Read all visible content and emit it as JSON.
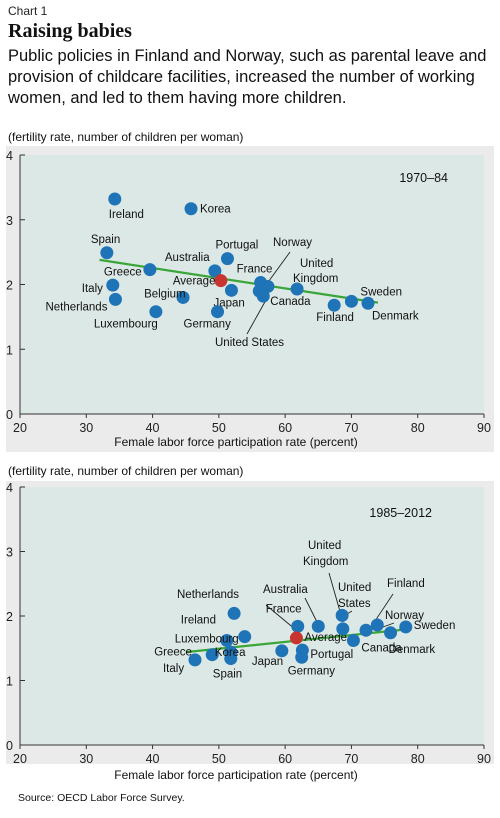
{
  "header": {
    "chart_label": "Chart 1",
    "title": "Raising babies",
    "subtitle": "Public policies in Finland and Norway, such as parental leave and provision of childcare facilities, increased the number of working women, and led to them having more children."
  },
  "source": "Source: OECD Labor Force Survey.",
  "colors": {
    "panel_background": "#dce8e5",
    "outer_frame": "#ebebeb",
    "country_dot": "#1f74b8",
    "average_dot": "#c83530",
    "trend_line": "#3aa538"
  },
  "chart_data": [
    {
      "type": "scatter",
      "period_label": "1970–84",
      "ylabel": "(fertility rate, number of children per woman)",
      "xlabel": "Female labor force participation rate (percent)",
      "xlim": [
        20,
        90
      ],
      "ylim": [
        0,
        4
      ],
      "x_ticks": [
        20,
        30,
        40,
        50,
        60,
        70,
        80,
        90
      ],
      "y_ticks": [
        0,
        1,
        2,
        3,
        4
      ],
      "trend_line": {
        "x": [
          32,
          74
        ],
        "y": [
          2.38,
          1.72
        ]
      },
      "points": [
        {
          "name": "Ireland",
          "x": 34.3,
          "y": 3.32
        },
        {
          "name": "Korea",
          "x": 45.8,
          "y": 3.17
        },
        {
          "name": "Spain",
          "x": 33.1,
          "y": 2.49
        },
        {
          "name": "Greece",
          "x": 39.6,
          "y": 2.23
        },
        {
          "name": "Italy",
          "x": 34.0,
          "y": 1.99
        },
        {
          "name": "Netherlands",
          "x": 34.4,
          "y": 1.77
        },
        {
          "name": "Belgium",
          "x": 44.6,
          "y": 1.8
        },
        {
          "name": "Luxembourg",
          "x": 40.5,
          "y": 1.58
        },
        {
          "name": "Australia",
          "x": 49.4,
          "y": 2.21
        },
        {
          "name": "Portugal",
          "x": 51.3,
          "y": 2.4
        },
        {
          "name": "Average",
          "x": 50.3,
          "y": 2.06,
          "average": true
        },
        {
          "name": "Japan",
          "x": 51.9,
          "y": 1.91
        },
        {
          "name": "Germany",
          "x": 49.8,
          "y": 1.58
        },
        {
          "name": "France",
          "x": 56.3,
          "y": 2.03
        },
        {
          "name": "Norway",
          "x": 57.4,
          "y": 1.97
        },
        {
          "name": "United States",
          "x": 56.7,
          "y": 1.82
        },
        {
          "name": "Canada",
          "x": 56.1,
          "y": 1.9
        },
        {
          "name": "United Kingdom",
          "x": 61.8,
          "y": 1.93
        },
        {
          "name": "Finland",
          "x": 67.4,
          "y": 1.68
        },
        {
          "name": "Sweden",
          "x": 70.0,
          "y": 1.74
        },
        {
          "name": "Denmark",
          "x": 72.5,
          "y": 1.71
        }
      ]
    },
    {
      "type": "scatter",
      "period_label": "1985–2012",
      "ylabel": "(fertility rate, number of children per woman)",
      "xlabel": "Female labor force participation rate (percent)",
      "xlim": [
        20,
        90
      ],
      "ylim": [
        0,
        4
      ],
      "x_ticks": [
        20,
        30,
        40,
        50,
        60,
        70,
        80,
        90
      ],
      "y_ticks": [
        0,
        1,
        2,
        3,
        4
      ],
      "trend_line": {
        "x": [
          45,
          79
        ],
        "y": [
          1.44,
          1.8
        ]
      },
      "points": [
        {
          "name": "Netherlands",
          "x": 52.3,
          "y": 2.04
        },
        {
          "name": "Ireland",
          "x": 51.2,
          "y": 1.62
        },
        {
          "name": "Luxembourg",
          "x": 53.9,
          "y": 1.68
        },
        {
          "name": "Greece",
          "x": 49.0,
          "y": 1.4
        },
        {
          "name": "Italy",
          "x": 46.4,
          "y": 1.32
        },
        {
          "name": "Spain",
          "x": 51.8,
          "y": 1.34
        },
        {
          "name": "Korea",
          "x": 51.8,
          "y": 1.44
        },
        {
          "name": "Japan",
          "x": 59.5,
          "y": 1.46
        },
        {
          "name": "France",
          "x": 61.9,
          "y": 1.84
        },
        {
          "name": "Average",
          "x": 61.7,
          "y": 1.66,
          "average": true
        },
        {
          "name": "Germany",
          "x": 62.5,
          "y": 1.36
        },
        {
          "name": "Portugal",
          "x": 62.6,
          "y": 1.47
        },
        {
          "name": "Australia",
          "x": 65.0,
          "y": 1.84
        },
        {
          "name": "United Kingdom",
          "x": 68.7,
          "y": 1.8
        },
        {
          "name": "United States",
          "x": 68.6,
          "y": 2.01
        },
        {
          "name": "Canada",
          "x": 70.3,
          "y": 1.62
        },
        {
          "name": "Finland",
          "x": 72.2,
          "y": 1.78
        },
        {
          "name": "Norway",
          "x": 73.9,
          "y": 1.86
        },
        {
          "name": "Denmark",
          "x": 75.9,
          "y": 1.74
        },
        {
          "name": "Sweden",
          "x": 78.2,
          "y": 1.83
        }
      ]
    }
  ]
}
